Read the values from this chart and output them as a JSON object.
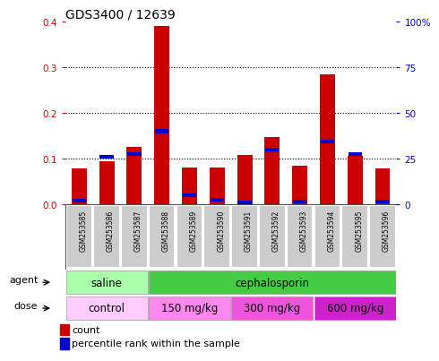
{
  "title": "GDS3400 / 12639",
  "samples": [
    "GSM253585",
    "GSM253586",
    "GSM253587",
    "GSM253588",
    "GSM253589",
    "GSM253590",
    "GSM253591",
    "GSM253592",
    "GSM253593",
    "GSM253594",
    "GSM253595",
    "GSM253596"
  ],
  "count_values": [
    0.078,
    0.095,
    0.125,
    0.39,
    0.08,
    0.08,
    0.108,
    0.148,
    0.085,
    0.285,
    0.105,
    0.078
  ],
  "percentile_values": [
    2.0,
    26.0,
    27.5,
    40.0,
    5.0,
    2.5,
    0.5,
    30.0,
    1.5,
    34.5,
    27.5,
    1.5
  ],
  "count_color": "#cc0000",
  "percentile_color": "#0000cc",
  "ylim_left": [
    0,
    0.4
  ],
  "yticks_left": [
    0,
    0.1,
    0.2,
    0.3,
    0.4
  ],
  "ytick_labels_left": [
    "0",
    "0.1",
    "0.2",
    "0.3",
    "0.4"
  ],
  "ytick_labels_right": [
    "0",
    "25",
    "50",
    "75",
    "100%"
  ],
  "yticks_right": [
    0,
    25,
    50,
    75,
    100
  ],
  "saline_color": "#aaffaa",
  "cephalosporin_color": "#44cc44",
  "dose_colors": [
    "#ffccff",
    "#ff88ee",
    "#ee55dd",
    "#cc22cc"
  ],
  "dose_labels": [
    "control",
    "150 mg/kg",
    "300 mg/kg",
    "600 mg/kg"
  ],
  "dose_ranges": [
    [
      0,
      3
    ],
    [
      3,
      6
    ],
    [
      6,
      9
    ],
    [
      9,
      12
    ]
  ],
  "agent_label": "agent",
  "dose_label": "dose",
  "legend_count_label": "count",
  "legend_percentile_label": "percentile rank within the sample",
  "left_label_color": "#cc0000",
  "right_label_color": "#0000cc",
  "bar_width": 0.55
}
